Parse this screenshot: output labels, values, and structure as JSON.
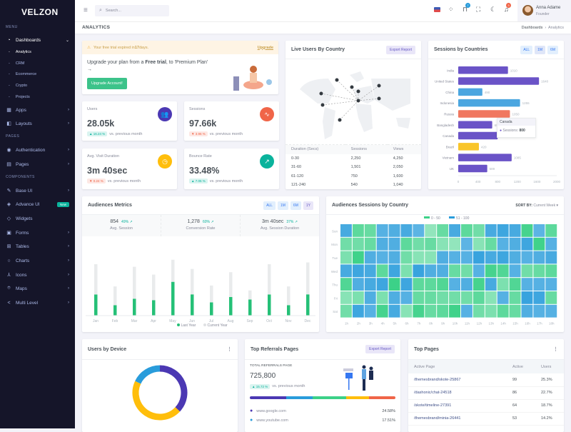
{
  "brand": "VELZON",
  "sidebar": {
    "sections": [
      "MENU",
      "PAGES",
      "COMPONENTS"
    ],
    "dashboards": "Dashboards",
    "sub": [
      "Analytics",
      "CRM",
      "Ecommerce",
      "Crypto",
      "Projects"
    ],
    "items": [
      {
        "label": "Apps",
        "icon": "apps-icon",
        "glyph": "▦"
      },
      {
        "label": "Layouts",
        "icon": "layouts-icon",
        "glyph": "◧"
      },
      {
        "label": "Authentication",
        "icon": "account-circle-icon",
        "glyph": "◉"
      },
      {
        "label": "Pages",
        "icon": "pages-icon",
        "glyph": "▤"
      },
      {
        "label": "Base UI",
        "icon": "pencil-ruler-icon",
        "glyph": "✎"
      },
      {
        "label": "Advance UI",
        "icon": "stack-icon",
        "glyph": "◈",
        "badge": "New"
      },
      {
        "label": "Widgets",
        "icon": "honour-icon",
        "glyph": "◇"
      },
      {
        "label": "Forms",
        "icon": "file-list-icon",
        "glyph": "▣"
      },
      {
        "label": "Tables",
        "icon": "table-icon",
        "glyph": "⊞"
      },
      {
        "label": "Charts",
        "icon": "pie-chart-icon",
        "glyph": "○"
      },
      {
        "label": "Icons",
        "icon": "compasses-icon",
        "glyph": "⅄"
      },
      {
        "label": "Maps",
        "icon": "map-pin-icon",
        "glyph": "⌾"
      },
      {
        "label": "Multi Level",
        "icon": "share-icon",
        "glyph": "<"
      }
    ]
  },
  "topbar": {
    "search_placeholder": "Search...",
    "cart_count": "7",
    "notif_count": "3",
    "user_name": "Anna Adame",
    "user_role": "Founder"
  },
  "page": {
    "title": "ANALYTICS",
    "breadcrumb": [
      "Dashboards",
      "Analytics"
    ]
  },
  "trial": {
    "alert_pre": "Your free trial expired in ",
    "alert_days": "17",
    "alert_post": " days.",
    "upgrade_link": "Upgrade",
    "text_pre": "Upgrade your plan from a ",
    "text_bold": "Free trial",
    "text_post": ", to 'Premium Plan' →",
    "button": "Upgrade Account!"
  },
  "stats": [
    {
      "label": "Users",
      "value": "28.05k",
      "change": "▲ 16.24 %",
      "dir": "up",
      "foot": "vs. previous month",
      "color": "#4b38b3",
      "glyph": "👥",
      "icon": "users-icon"
    },
    {
      "label": "Sessions",
      "value": "97.66k",
      "change": "▼ 3.96 %",
      "dir": "down",
      "foot": "vs. previous month",
      "color": "#f06548",
      "glyph": "∿",
      "icon": "pulse-icon"
    },
    {
      "label": "Avg. Visit Duration",
      "value": "3m 40sec",
      "change": "▼ 0.24 %",
      "dir": "down",
      "foot": "vs. previous month",
      "color": "#ffbe0b",
      "glyph": "◷",
      "icon": "clock-icon"
    },
    {
      "label": "Bounce Rate",
      "value": "33.48%",
      "change": "▲ 7.05 %",
      "dir": "up",
      "foot": "vs. previous month",
      "color": "#0ab39c",
      "glyph": "↗",
      "icon": "external-link-icon"
    }
  ],
  "live_users": {
    "title": "Live Users By Country",
    "export": "Export Report",
    "columns": [
      "Duration (Secs)",
      "Sessions",
      "Views"
    ],
    "rows": [
      [
        "0-30",
        "2,250",
        "4,250"
      ],
      [
        "31-60",
        "1,501",
        "2,050"
      ],
      [
        "61-120",
        "750",
        "1,600"
      ],
      [
        "121-240",
        "540",
        "1,040"
      ]
    ]
  },
  "sessions_countries": {
    "title": "Sessions by Countries",
    "filters": [
      "ALL",
      "1M",
      "6M"
    ],
    "tooltip": {
      "country": "Canada",
      "label": "Sessions:",
      "value": "800"
    }
  },
  "audiences": {
    "title": "Audiences Metrics",
    "filters": [
      "ALL",
      "1M",
      "6M",
      "1Y"
    ],
    "metrics": [
      {
        "value": "854",
        "change": "49% ↗",
        "label": "Avg. Session"
      },
      {
        "value": "1,278",
        "change": "60% ↗",
        "label": "Conversion Rate"
      },
      {
        "value": "3m 40sec",
        "change": "37% ↗",
        "label": "Avg. Session Duration"
      }
    ]
  },
  "heatmap": {
    "title": "Audiences Sessions by Country",
    "sort_label": "SORT BY:",
    "sort_value": "Current Week"
  },
  "devices": {
    "title": "Users by Device"
  },
  "referrals": {
    "title": "Top Referrals Pages",
    "export": "Export Report",
    "total_label": "TOTAL REFERRALS PAGE",
    "total": "725,800",
    "change": "▲ 15.72 %",
    "foot": "vs. previous month",
    "items": [
      {
        "site": "www.google.com",
        "pct": "24.58%",
        "color": "#4b38b3"
      },
      {
        "site": "www.youtube.com",
        "pct": "17.51%",
        "color": "#299cdb"
      }
    ]
  },
  "top_pages": {
    "title": "Top Pages",
    "columns": [
      "Active Page",
      "Active",
      "Users"
    ],
    "rows": [
      [
        "/themesbrand/skote-25867",
        "99",
        "25.3%"
      ],
      [
        "/dashonic/chat-24518",
        "86",
        "22.7%"
      ],
      [
        "/skote/timeline-27391",
        "64",
        "18.7%"
      ],
      [
        "/themesbrand/minia-26441",
        "53",
        "14.2%"
      ]
    ]
  },
  "chart_data": [
    {
      "type": "bar",
      "orientation": "horizontal",
      "categories": [
        "India",
        "United States",
        "China",
        "Indonesia",
        "Russia",
        "Bangladesh",
        "Canada",
        "Brazil",
        "Vietnam",
        "UK"
      ],
      "values": [
        1010,
        1640,
        490,
        1255,
        1050,
        690,
        800,
        420,
        1085,
        589
      ],
      "colors": [
        "#6a53c7",
        "#6a53c7",
        "#4ba6e0",
        "#4ba6e0",
        "#f0775f",
        "#6a53c7",
        "#6a53c7",
        "#f9c52a",
        "#6a53c7",
        "#6a53c7"
      ],
      "xlim": [
        0,
        2000
      ],
      "xticks": [
        0,
        400,
        800,
        1200,
        1600,
        2000
      ]
    },
    {
      "type": "bar",
      "stacked": true,
      "categories": [
        "Jan",
        "Feb",
        "Mar",
        "Apr",
        "May",
        "Jun",
        "Jul",
        "Aug",
        "Sep",
        "Oct",
        "Nov",
        "Dec"
      ],
      "series": [
        {
          "name": "Last Year",
          "color": "#25c077",
          "values": [
            25.3,
            12.5,
            20.2,
            18.5,
            40.4,
            25.4,
            15.8,
            22.3,
            19.2,
            25.3,
            12.5,
            25.4
          ]
        },
        {
          "name": "Current Year",
          "color": "#e9ebec",
          "values": [
            36.2,
            22.4,
            38.2,
            30.5,
            26.4,
            30.4,
            20.2,
            29.6,
            10.9,
            36.2,
            22.4,
            38.2
          ]
        }
      ],
      "ylim": [
        0,
        70
      ]
    },
    {
      "type": "heatmap",
      "rows": [
        "Sun",
        "Mon",
        "Tue",
        "Wed",
        "Thu",
        "Fri",
        "Sat"
      ],
      "columns": [
        "1h",
        "2h",
        "3h",
        "4h",
        "5h",
        "6h",
        "7h",
        "8h",
        "9h",
        "10h",
        "11h",
        "12h",
        "13h",
        "14h",
        "15h",
        "16h",
        "17h",
        "18h"
      ],
      "legend": [
        {
          "name": "0 - 50",
          "color": "#3cd188"
        },
        {
          "name": "51 - 100",
          "color": "#299cdb"
        }
      ],
      "values": [
        [
          80,
          35,
          30,
          70,
          75,
          80,
          65,
          10,
          30,
          80,
          35,
          25,
          80,
          85,
          80,
          45,
          65,
          35
        ],
        [
          25,
          25,
          30,
          75,
          75,
          35,
          25,
          30,
          15,
          10,
          65,
          15,
          30,
          70,
          75,
          85,
          48,
          70
        ],
        [
          20,
          48,
          75,
          70,
          75,
          25,
          15,
          15,
          75,
          70,
          70,
          90,
          80,
          85,
          75,
          70,
          75,
          80
        ],
        [
          80,
          85,
          80,
          35,
          85,
          20,
          90,
          75,
          75,
          30,
          25,
          70,
          45,
          40,
          70,
          25,
          30,
          35
        ],
        [
          40,
          75,
          80,
          85,
          50,
          85,
          35,
          35,
          40,
          70,
          75,
          45,
          80,
          20,
          40,
          70,
          70,
          70
        ],
        [
          15,
          20,
          75,
          20,
          75,
          70,
          30,
          30,
          25,
          25,
          25,
          35,
          15,
          70,
          30,
          90,
          85,
          30
        ],
        [
          25,
          85,
          70,
          45,
          80,
          15,
          45,
          30,
          35,
          48,
          70,
          25,
          20,
          35,
          30,
          75,
          70,
          70
        ]
      ]
    },
    {
      "type": "pie",
      "donut": true,
      "values": [
        37,
        45,
        18
      ],
      "colors": [
        "#4b38b3",
        "#ffbe0b",
        "#299cdb"
      ]
    },
    {
      "type": "bar",
      "stacked_percent": true,
      "values": [
        25,
        18,
        23,
        16,
        18
      ],
      "colors": [
        "#4b38b3",
        "#299cdb",
        "#3cd188",
        "#ffbe0b",
        "#f06548"
      ]
    }
  ],
  "colors": {
    "sidebar": "#151529",
    "primary": "#405189",
    "success": "#0ab39c"
  }
}
